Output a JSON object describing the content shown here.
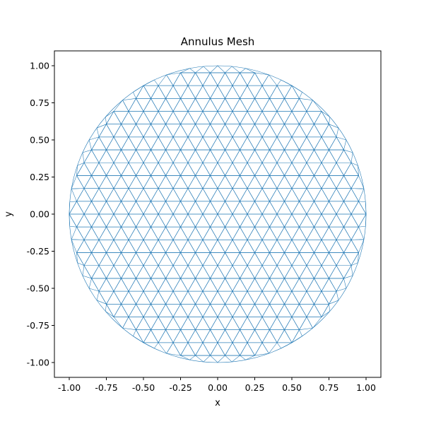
{
  "chart_data": {
    "type": "triangular-mesh",
    "title": "Annulus Mesh",
    "xlabel": "x",
    "ylabel": "y",
    "xlim": [
      -1.1,
      1.1
    ],
    "ylim": [
      -1.1,
      1.1
    ],
    "xticks": [
      -1.0,
      -0.75,
      -0.5,
      -0.25,
      0.0,
      0.25,
      0.5,
      0.75,
      1.0
    ],
    "yticks": [
      -1.0,
      -0.75,
      -0.5,
      -0.25,
      0.0,
      0.25,
      0.5,
      0.75,
      1.0
    ],
    "xtick_labels": [
      "-1.00",
      "-0.75",
      "-0.50",
      "-0.25",
      "0.00",
      "0.25",
      "0.50",
      "0.75",
      "1.00"
    ],
    "ytick_labels": [
      "-1.00",
      "-0.75",
      "-0.50",
      "-0.25",
      "0.00",
      "0.25",
      "0.50",
      "0.75",
      "1.00"
    ],
    "domain": {
      "shape": "disk",
      "center": [
        0,
        0
      ],
      "radius": 1.0
    },
    "mesh_spacing": 0.1,
    "mesh_color": "#1f77b4",
    "grid": false,
    "legend": false
  }
}
